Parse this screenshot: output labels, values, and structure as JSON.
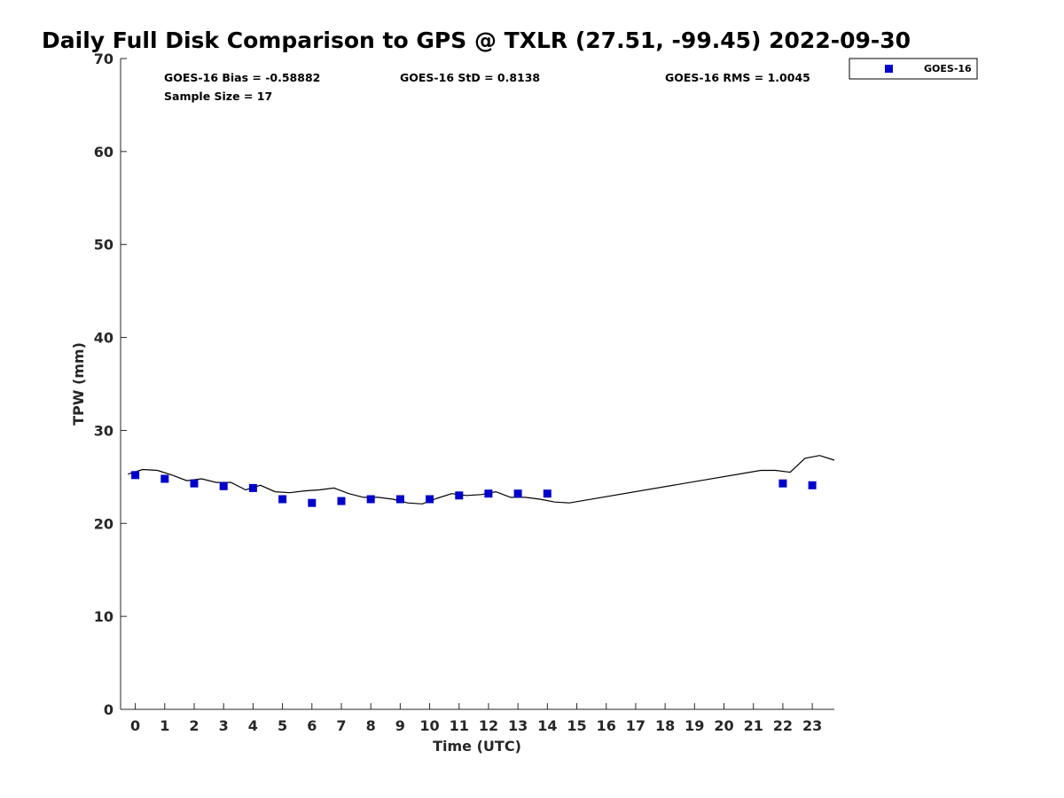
{
  "chart_data": {
    "type": "scatter",
    "title": "Daily Full Disk Comparison to GPS @ TXLR (27.51, -99.45) 2022-09-30",
    "xlabel": "Time (UTC)",
    "ylabel": "TPW (mm)",
    "xlim": [
      -0.5,
      23.75
    ],
    "ylim": [
      0,
      70
    ],
    "x_ticks": [
      "0",
      "1",
      "2",
      "3",
      "4",
      "5",
      "6",
      "7",
      "8",
      "9",
      "10",
      "11",
      "12",
      "13",
      "14",
      "15",
      "16",
      "17",
      "18",
      "19",
      "20",
      "21",
      "22",
      "23"
    ],
    "y_ticks": [
      "0",
      "10",
      "20",
      "30",
      "40",
      "50",
      "60",
      "70"
    ],
    "grid": false,
    "legend_position": "top-right-outside",
    "stats": {
      "bias": "GOES-16 Bias = -0.58882",
      "std": "GOES-16 StD = 0.8138",
      "rms": "GOES-16 RMS = 1.0045",
      "sample_size": "Sample Size = 17"
    },
    "series": [
      {
        "name": "GOES-16",
        "kind": "scatter",
        "marker": "square",
        "color": "#0000cc",
        "points": [
          [
            0,
            25.2
          ],
          [
            1,
            24.8
          ],
          [
            2,
            24.3
          ],
          [
            3,
            24.0
          ],
          [
            4,
            23.8
          ],
          [
            5,
            22.6
          ],
          [
            6,
            22.2
          ],
          [
            7,
            22.4
          ],
          [
            8,
            22.6
          ],
          [
            9,
            22.6
          ],
          [
            10,
            22.6
          ],
          [
            11,
            23.0
          ],
          [
            12,
            23.2
          ],
          [
            13,
            23.2
          ],
          [
            14,
            23.2
          ],
          [
            22,
            24.3
          ],
          [
            23,
            24.1
          ]
        ]
      },
      {
        "kind": "line",
        "color": "#000000",
        "points": [
          [
            -0.25,
            25.3
          ],
          [
            0.25,
            25.8
          ],
          [
            0.75,
            25.7
          ],
          [
            1.25,
            25.2
          ],
          [
            1.75,
            24.6
          ],
          [
            2.25,
            24.8
          ],
          [
            2.75,
            24.4
          ],
          [
            3.25,
            24.4
          ],
          [
            3.75,
            23.6
          ],
          [
            4.25,
            24.1
          ],
          [
            4.75,
            23.4
          ],
          [
            5.25,
            23.3
          ],
          [
            5.75,
            23.5
          ],
          [
            6.25,
            23.6
          ],
          [
            6.75,
            23.8
          ],
          [
            7.25,
            23.2
          ],
          [
            7.75,
            22.8
          ],
          [
            8.25,
            22.8
          ],
          [
            8.75,
            22.6
          ],
          [
            9.25,
            22.2
          ],
          [
            9.75,
            22.1
          ],
          [
            10.25,
            22.7
          ],
          [
            10.75,
            23.2
          ],
          [
            11.25,
            23.0
          ],
          [
            11.75,
            23.1
          ],
          [
            12.25,
            23.4
          ],
          [
            12.75,
            22.8
          ],
          [
            13.25,
            22.8
          ],
          [
            13.75,
            22.6
          ],
          [
            14.25,
            22.3
          ],
          [
            14.75,
            22.2
          ],
          [
            21.25,
            25.7
          ],
          [
            21.75,
            25.7
          ],
          [
            22.25,
            25.5
          ],
          [
            22.75,
            27.0
          ],
          [
            23.25,
            27.3
          ],
          [
            23.75,
            26.8
          ]
        ]
      }
    ]
  }
}
